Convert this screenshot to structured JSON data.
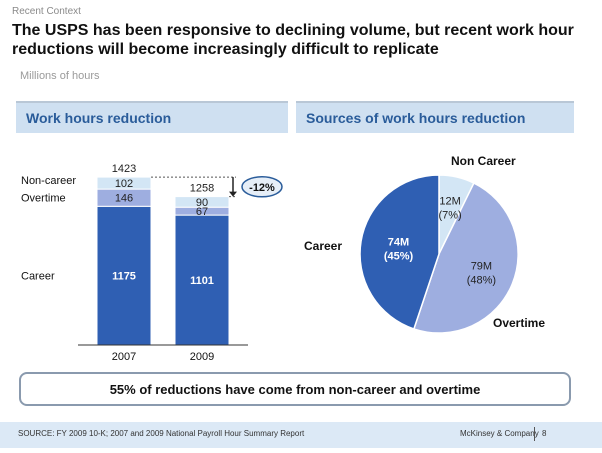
{
  "eyebrow": "Recent Context",
  "headline": "The USPS has been responsive to declining volume, but recent work hour reductions will become increasingly difficult to replicate",
  "unit_label": "Millions of hours",
  "left_panel": {
    "title": "Work hours reduction"
  },
  "right_panel": {
    "title": "Sources of work hours reduction"
  },
  "callout": "55% of reductions have come from non-career and overtime",
  "footer": {
    "source": "SOURCE: FY 2009 10-K; 2007 and 2009 National Payroll Hour Summary Report",
    "brand": "McKinsey & Company",
    "page": "8"
  },
  "colors": {
    "career": "#2f5fb3",
    "overtime": "#9eaee0",
    "non_career": "#d3e6f5",
    "callout_border": "#2a5c9a"
  },
  "chart_data": [
    {
      "type": "bar",
      "stacked": true,
      "title": "Work hours reduction",
      "ylabel": "Millions of hours",
      "categories": [
        "2007",
        "2009"
      ],
      "series": [
        {
          "name": "Career",
          "values": [
            1175,
            1101
          ]
        },
        {
          "name": "Overtime",
          "values": [
            146,
            67
          ]
        },
        {
          "name": "Non-career",
          "values": [
            102,
            90
          ]
        }
      ],
      "totals": [
        1423,
        1258
      ],
      "change_label": "-12%",
      "ylim": [
        0,
        1450
      ]
    },
    {
      "type": "pie",
      "title": "Sources of work hours reduction",
      "slices": [
        {
          "name": "Non Career",
          "label": "12M",
          "pct_label": "(7%)",
          "value": 12
        },
        {
          "name": "Overtime",
          "label": "79M",
          "pct_label": "(48%)",
          "value": 79
        },
        {
          "name": "Career",
          "label": "74M",
          "pct_label": "(45%)",
          "value": 74
        }
      ]
    }
  ]
}
